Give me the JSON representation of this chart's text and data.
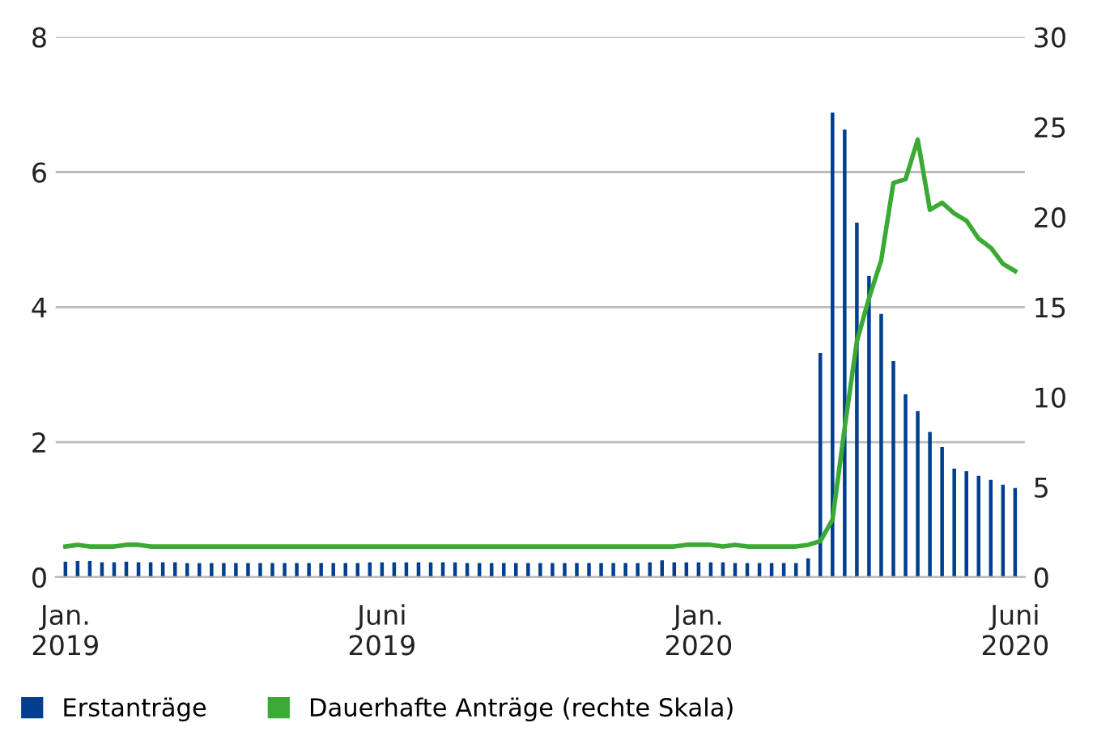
{
  "chart_data": {
    "type": "bar",
    "categories": [
      "Jan.\n2019",
      null,
      null,
      null,
      null,
      null,
      null,
      null,
      null,
      null,
      null,
      null,
      null,
      null,
      null,
      null,
      null,
      null,
      null,
      null,
      null,
      null,
      null,
      null,
      null,
      null,
      "Juni\n2019",
      null,
      null,
      null,
      null,
      null,
      null,
      null,
      null,
      null,
      null,
      null,
      null,
      null,
      null,
      null,
      null,
      null,
      null,
      null,
      null,
      null,
      null,
      null,
      null,
      null,
      "Jan.\n2020",
      null,
      null,
      null,
      null,
      null,
      null,
      null,
      null,
      null,
      null,
      null,
      null,
      null,
      null,
      null,
      null,
      null,
      null,
      null,
      null,
      null,
      null,
      null,
      null,
      null,
      "Juni\n2020"
    ],
    "series": [
      {
        "name": "Erstanträge",
        "color": "#003f8f",
        "values": [
          0.23,
          0.24,
          0.24,
          0.22,
          0.22,
          0.23,
          0.22,
          0.22,
          0.22,
          0.22,
          0.21,
          0.21,
          0.21,
          0.21,
          0.21,
          0.21,
          0.21,
          0.21,
          0.21,
          0.21,
          0.21,
          0.21,
          0.21,
          0.21,
          0.21,
          0.22,
          0.22,
          0.22,
          0.22,
          0.22,
          0.22,
          0.22,
          0.22,
          0.21,
          0.21,
          0.21,
          0.21,
          0.21,
          0.21,
          0.21,
          0.21,
          0.21,
          0.21,
          0.21,
          0.21,
          0.21,
          0.21,
          0.21,
          0.22,
          0.25,
          0.22,
          0.22,
          0.22,
          0.22,
          0.22,
          0.21,
          0.21,
          0.21,
          0.21,
          0.21,
          0.21,
          0.28,
          3.32,
          6.88,
          6.63,
          5.25,
          4.46,
          3.9,
          3.2,
          2.71,
          2.46,
          2.15,
          1.93,
          1.61,
          1.57,
          1.5,
          1.44,
          1.37,
          1.32
        ]
      },
      {
        "name": "Dauerhafte Anträge (rechte Skala)",
        "color": "#3aaa35",
        "type": "line",
        "axis": "y2",
        "values": [
          1.7,
          1.8,
          1.7,
          1.7,
          1.7,
          1.8,
          1.8,
          1.7,
          1.7,
          1.7,
          1.7,
          1.7,
          1.7,
          1.7,
          1.7,
          1.7,
          1.7,
          1.7,
          1.7,
          1.7,
          1.7,
          1.7,
          1.7,
          1.7,
          1.7,
          1.7,
          1.7,
          1.7,
          1.7,
          1.7,
          1.7,
          1.7,
          1.7,
          1.7,
          1.7,
          1.7,
          1.7,
          1.7,
          1.7,
          1.7,
          1.7,
          1.7,
          1.7,
          1.7,
          1.7,
          1.7,
          1.7,
          1.7,
          1.7,
          1.7,
          1.7,
          1.8,
          1.8,
          1.8,
          1.7,
          1.8,
          1.7,
          1.7,
          1.7,
          1.7,
          1.7,
          1.8,
          2.0,
          3.2,
          8.3,
          13.1,
          15.5,
          17.6,
          21.9,
          22.1,
          24.3,
          20.4,
          20.8,
          20.2,
          19.8,
          18.8,
          18.3,
          17.4,
          17.0
        ]
      }
    ],
    "ylim": [
      0,
      8
    ],
    "yticks": [
      0,
      2,
      4,
      6,
      8
    ],
    "y2lim": [
      0,
      30
    ],
    "y2ticks": [
      0,
      5,
      10,
      15,
      20,
      25,
      30
    ],
    "grid": "y",
    "legend": "bottom"
  }
}
